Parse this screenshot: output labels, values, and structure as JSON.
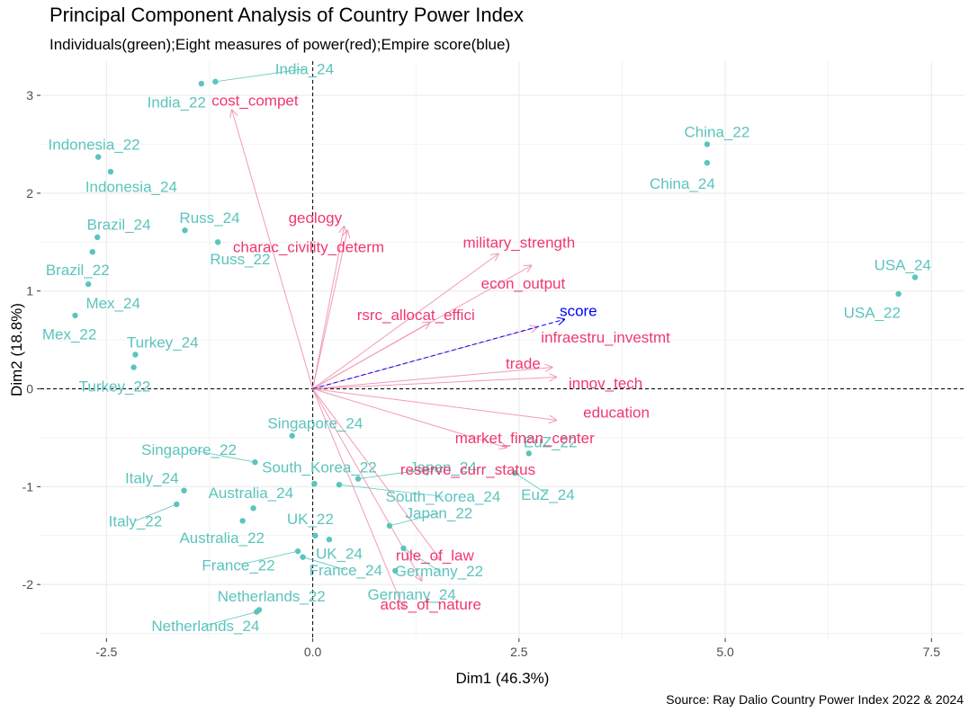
{
  "title": "Principal Component Analysis of Country Power Index",
  "subtitle": "Individuals(green);Eight measures of power(red);Empire score(blue)",
  "caption": "Source: Ray Dalio Country Power Index 2022 & 2024",
  "colors": {
    "individuals": "#5bc4bd",
    "variables": "#f0386e",
    "variable_lines": "#f29bb8",
    "score": "#0000ff",
    "grid": "#ebebeb"
  },
  "chart_data": {
    "type": "scatter",
    "xlabel": "Dim1 (46.3%)",
    "ylabel": "Dim2 (18.8%)",
    "xlim": [
      -3.3,
      7.9
    ],
    "ylim": [
      -2.55,
      3.35
    ],
    "xticks": [
      -2.5,
      0,
      2.5,
      5,
      7.5
    ],
    "xtick_labels": [
      "-2.5",
      "0.0",
      "2.5",
      "5.0",
      "7.5"
    ],
    "yticks": [
      -2,
      -1,
      0,
      1,
      2,
      3
    ],
    "ytick_labels": [
      "-2",
      "-1",
      "0",
      "1",
      "2",
      "3"
    ],
    "grid": true,
    "individuals": [
      {
        "label": "India_24",
        "x": -1.18,
        "y": 3.14,
        "lx": -0.1,
        "ly": 3.27
      },
      {
        "label": "India_22",
        "x": -1.35,
        "y": 3.12,
        "lx": -1.65,
        "ly": 2.93
      },
      {
        "label": "Indonesia_22",
        "x": -2.6,
        "y": 2.37,
        "lx": -2.65,
        "ly": 2.5
      },
      {
        "label": "Indonesia_24",
        "x": -2.45,
        "y": 2.22,
        "lx": -2.2,
        "ly": 2.07
      },
      {
        "label": "China_22",
        "x": 4.78,
        "y": 2.5,
        "lx": 4.9,
        "ly": 2.63
      },
      {
        "label": "China_24",
        "x": 4.78,
        "y": 2.31,
        "lx": 4.48,
        "ly": 2.1
      },
      {
        "label": "Russ_24",
        "x": -1.55,
        "y": 1.62,
        "lx": -1.25,
        "ly": 1.75
      },
      {
        "label": "Russ_22",
        "x": -1.15,
        "y": 1.5,
        "lx": -0.88,
        "ly": 1.33
      },
      {
        "label": "Brazil_24",
        "x": -2.61,
        "y": 1.55,
        "lx": -2.35,
        "ly": 1.68
      },
      {
        "label": "Brazil_22",
        "x": -2.67,
        "y": 1.4,
        "lx": -2.85,
        "ly": 1.22
      },
      {
        "label": "USA_24",
        "x": 7.3,
        "y": 1.14,
        "lx": 7.15,
        "ly": 1.27
      },
      {
        "label": "USA_22",
        "x": 7.1,
        "y": 0.97,
        "lx": 6.78,
        "ly": 0.78
      },
      {
        "label": "Mex_24",
        "x": -2.72,
        "y": 1.07,
        "lx": -2.42,
        "ly": 0.88
      },
      {
        "label": "Mex_22",
        "x": -2.88,
        "y": 0.75,
        "lx": -2.95,
        "ly": 0.56
      },
      {
        "label": "Turkey_24",
        "x": -2.15,
        "y": 0.35,
        "lx": -1.82,
        "ly": 0.48
      },
      {
        "label": "Turkey_22",
        "x": -2.17,
        "y": 0.22,
        "lx": -2.4,
        "ly": 0.03
      },
      {
        "label": "Singapore_24",
        "x": -0.25,
        "y": -0.48,
        "lx": 0.03,
        "ly": -0.35
      },
      {
        "label": "Singapore_22",
        "x": -0.7,
        "y": -0.75,
        "lx": -1.5,
        "ly": -0.62
      },
      {
        "label": "South_Korea_22",
        "x": 0.02,
        "y": -0.97,
        "lx": 0.08,
        "ly": -0.8
      },
      {
        "label": "Japan_24",
        "x": 0.55,
        "y": -0.92,
        "lx": 1.58,
        "ly": -0.8
      },
      {
        "label": "South_Korea_24",
        "x": 0.32,
        "y": -0.98,
        "lx": 1.58,
        "ly": -1.1
      },
      {
        "label": "EuZ_22",
        "x": 2.62,
        "y": -0.66,
        "lx": 2.88,
        "ly": -0.54
      },
      {
        "label": "EuZ_24",
        "x": 2.45,
        "y": -0.86,
        "lx": 2.85,
        "ly": -1.08
      },
      {
        "label": "Italy_24",
        "x": -1.56,
        "y": -1.04,
        "lx": -1.95,
        "ly": -0.91
      },
      {
        "label": "Italy_22",
        "x": -1.65,
        "y": -1.18,
        "lx": -2.15,
        "ly": -1.35
      },
      {
        "label": "Australia_24",
        "x": -0.72,
        "y": -1.22,
        "lx": -0.75,
        "ly": -1.06
      },
      {
        "label": "Australia_22",
        "x": -0.85,
        "y": -1.35,
        "lx": -1.1,
        "ly": -1.52
      },
      {
        "label": "Japan_22",
        "x": 0.93,
        "y": -1.4,
        "lx": 1.53,
        "ly": -1.27
      },
      {
        "label": "UK_22",
        "x": 0.03,
        "y": -1.5,
        "lx": -0.03,
        "ly": -1.33
      },
      {
        "label": "UK_24",
        "x": 0.2,
        "y": -1.54,
        "lx": 0.32,
        "ly": -1.68
      },
      {
        "label": "France_22",
        "x": -0.18,
        "y": -1.66,
        "lx": -0.9,
        "ly": -1.8
      },
      {
        "label": "France_24",
        "x": -0.12,
        "y": -1.72,
        "lx": 0.4,
        "ly": -1.85
      },
      {
        "label": "Germany_22",
        "x": 1.1,
        "y": -1.63,
        "lx": 1.53,
        "ly": -1.86
      },
      {
        "label": "Germany_24",
        "x": 1.0,
        "y": -1.86,
        "lx": 1.2,
        "ly": -2.1
      },
      {
        "label": "Netherlands_22",
        "x": -0.65,
        "y": -2.26,
        "lx": -0.5,
        "ly": -2.12
      },
      {
        "label": "Netherlands_24",
        "x": -0.68,
        "y": -2.28,
        "lx": -1.3,
        "ly": -2.42
      }
    ],
    "variables": [
      {
        "label": "cost_compet",
        "x": -0.98,
        "y": 2.85,
        "lx": -0.7,
        "ly": 2.95
      },
      {
        "label": "geology",
        "x": 0.38,
        "y": 1.66,
        "lx": 0.03,
        "ly": 1.75
      },
      {
        "label": "charac_civility_determ",
        "x": 0.42,
        "y": 1.62,
        "lx": -0.05,
        "ly": 1.45
      },
      {
        "label": "military_strength",
        "x": 2.25,
        "y": 1.38,
        "lx": 2.5,
        "ly": 1.5
      },
      {
        "label": "econ_output",
        "x": 2.65,
        "y": 1.26,
        "lx": 2.55,
        "ly": 1.08
      },
      {
        "label": "rsrc_allocat_effici",
        "x": 1.42,
        "y": 0.68,
        "lx": 1.25,
        "ly": 0.76
      },
      {
        "label": "infraestru_investmt",
        "x": 2.72,
        "y": 0.63,
        "lx": 3.55,
        "ly": 0.53
      },
      {
        "label": "trade",
        "x": 2.9,
        "y": 0.22,
        "lx": 2.55,
        "ly": 0.26
      },
      {
        "label": "innov_tech",
        "x": 2.95,
        "y": 0.12,
        "lx": 3.55,
        "ly": 0.06
      },
      {
        "label": "education",
        "x": 2.95,
        "y": -0.32,
        "lx": 3.68,
        "ly": -0.24
      },
      {
        "label": "market_finan_center",
        "x": 2.35,
        "y": -0.6,
        "lx": 2.57,
        "ly": -0.5
      },
      {
        "label": "reserve_curr_status",
        "x": 1.55,
        "y": -1.75,
        "lx": 1.88,
        "ly": -0.82
      },
      {
        "label": "rule_of_law",
        "x": 1.32,
        "y": -1.96,
        "lx": 1.48,
        "ly": -1.7
      },
      {
        "label": "acts_of_nature",
        "x": 1.1,
        "y": -2.25,
        "lx": 1.43,
        "ly": -2.2
      }
    ],
    "score": {
      "label": "score",
      "x": 3.05,
      "y": 0.71,
      "lx": 3.22,
      "ly": 0.8
    }
  }
}
